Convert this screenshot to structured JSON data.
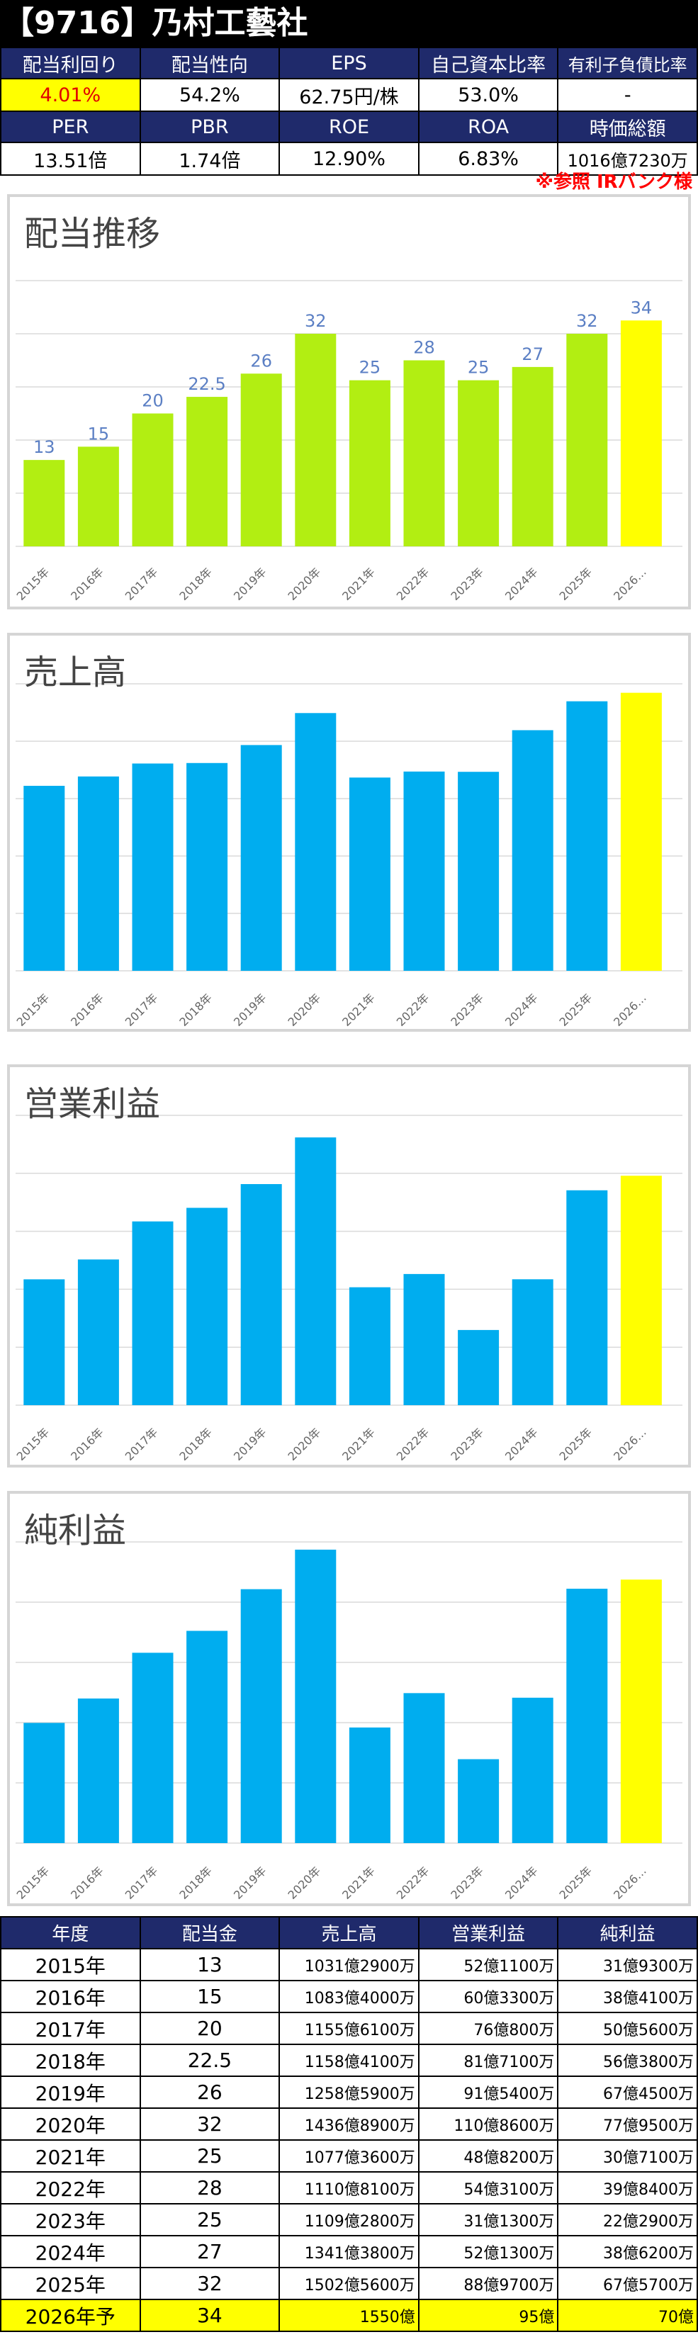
{
  "title": "【9716】乃村工藝社",
  "metrics": {
    "row1_headers": [
      "配当利回り",
      "配当性向",
      "EPS",
      "自己資本比率",
      "有利子負債比率"
    ],
    "row1_values": [
      "4.01%",
      "54.2%",
      "62.75円/株",
      "53.0%",
      "-"
    ],
    "row2_headers": [
      "PER",
      "PBR",
      "ROE",
      "ROA",
      "時価総額"
    ],
    "row2_values": [
      "13.51倍",
      "1.74倍",
      "12.90%",
      "6.83%",
      "1016億7230万"
    ]
  },
  "source_note": "※参照 IRバンク様",
  "colors": {
    "header_bg": "#1f2a6b",
    "bar_green": "#b2ee12",
    "bar_blue": "#00adef",
    "forecast_yellow": "#ffff00",
    "yield_red": "#e00000"
  },
  "chart_data": [
    {
      "type": "bar",
      "title": "配当推移",
      "categories": [
        "2015年",
        "2016年",
        "2017年",
        "2018年",
        "2019年",
        "2020年",
        "2021年",
        "2022年",
        "2023年",
        "2024年",
        "2025年",
        "2026…"
      ],
      "values": [
        13,
        15,
        20,
        22.5,
        26,
        32,
        25,
        28,
        25,
        27,
        32,
        34
      ],
      "data_labels": [
        "13",
        "15",
        "20",
        "22.5",
        "26",
        "32",
        "25",
        "28",
        "25",
        "27",
        "32",
        "34"
      ],
      "ylim": [
        0,
        40
      ],
      "grid": true,
      "highlight_last": true
    },
    {
      "type": "bar",
      "title": "売上高",
      "categories": [
        "2015年",
        "2016年",
        "2017年",
        "2018年",
        "2019年",
        "2020年",
        "2021年",
        "2022年",
        "2023年",
        "2024年",
        "2025年",
        "2026…"
      ],
      "values": [
        1031.29,
        1083.4,
        1155.61,
        1158.41,
        1258.59,
        1436.89,
        1077.36,
        1110.81,
        1109.28,
        1341.38,
        1502.56,
        1550
      ],
      "ylim": [
        0,
        1600
      ],
      "grid": true,
      "highlight_last": true
    },
    {
      "type": "bar",
      "title": "営業利益",
      "categories": [
        "2015年",
        "2016年",
        "2017年",
        "2018年",
        "2019年",
        "2020年",
        "2021年",
        "2022年",
        "2023年",
        "2024年",
        "2025年",
        "2026…"
      ],
      "values": [
        52.11,
        60.33,
        76.08,
        81.71,
        91.54,
        110.86,
        48.82,
        54.31,
        31.13,
        52.13,
        88.97,
        95
      ],
      "ylim": [
        0,
        120
      ],
      "grid": true,
      "highlight_last": true
    },
    {
      "type": "bar",
      "title": "純利益",
      "categories": [
        "2015年",
        "2016年",
        "2017年",
        "2018年",
        "2019年",
        "2020年",
        "2021年",
        "2022年",
        "2023年",
        "2024年",
        "2025年",
        "2026…"
      ],
      "values": [
        31.93,
        38.41,
        50.56,
        56.38,
        67.45,
        77.95,
        30.71,
        39.84,
        22.29,
        38.62,
        67.57,
        70
      ],
      "ylim": [
        0,
        80
      ],
      "grid": true,
      "highlight_last": true
    }
  ],
  "table": {
    "headers": [
      "年度",
      "配当金",
      "売上高",
      "営業利益",
      "純利益"
    ],
    "rows": [
      [
        "2015年",
        "13",
        "1031億2900万",
        "52億1100万",
        "31億9300万"
      ],
      [
        "2016年",
        "15",
        "1083億4000万",
        "60億3300万",
        "38億4100万"
      ],
      [
        "2017年",
        "20",
        "1155億6100万",
        "76億800万",
        "50億5600万"
      ],
      [
        "2018年",
        "22.5",
        "1158億4100万",
        "81億7100万",
        "56億3800万"
      ],
      [
        "2019年",
        "26",
        "1258億5900万",
        "91億5400万",
        "67億4500万"
      ],
      [
        "2020年",
        "32",
        "1436億8900万",
        "110億8600万",
        "77億9500万"
      ],
      [
        "2021年",
        "25",
        "1077億3600万",
        "48億8200万",
        "30億7100万"
      ],
      [
        "2022年",
        "28",
        "1110億8100万",
        "54億3100万",
        "39億8400万"
      ],
      [
        "2023年",
        "25",
        "1109億2800万",
        "31億1300万",
        "22億2900万"
      ],
      [
        "2024年",
        "27",
        "1341億3800万",
        "52億1300万",
        "38億6200万"
      ],
      [
        "2025年",
        "32",
        "1502億5600万",
        "88億9700万",
        "67億5700万"
      ],
      [
        "2026年予",
        "34",
        "1550億",
        "95億",
        "70億"
      ]
    ]
  }
}
